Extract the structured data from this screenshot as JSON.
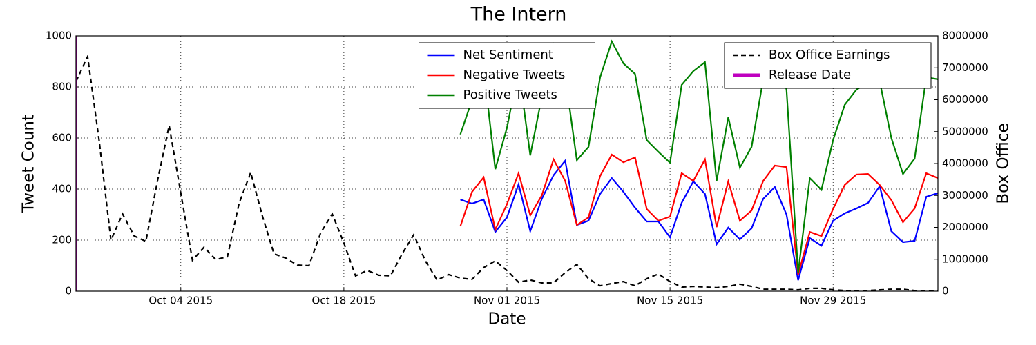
{
  "chart_data": {
    "type": "line",
    "title": "The Intern",
    "xlabel": "Date",
    "ylabel": "Tweet Count",
    "y2label": "Box Office",
    "x": [
      "2015-09-25",
      "2015-09-26",
      "2015-09-27",
      "2015-09-28",
      "2015-09-29",
      "2015-09-30",
      "2015-10-01",
      "2015-10-02",
      "2015-10-03",
      "2015-10-04",
      "2015-10-05",
      "2015-10-06",
      "2015-10-07",
      "2015-10-08",
      "2015-10-09",
      "2015-10-10",
      "2015-10-11",
      "2015-10-12",
      "2015-10-13",
      "2015-10-14",
      "2015-10-15",
      "2015-10-16",
      "2015-10-17",
      "2015-10-18",
      "2015-10-19",
      "2015-10-20",
      "2015-10-21",
      "2015-10-22",
      "2015-10-23",
      "2015-10-24",
      "2015-10-25",
      "2015-10-26",
      "2015-10-27",
      "2015-10-28",
      "2015-10-29",
      "2015-10-30",
      "2015-10-31",
      "2015-11-01",
      "2015-11-02",
      "2015-11-03",
      "2015-11-04",
      "2015-11-05",
      "2015-11-06",
      "2015-11-07",
      "2015-11-08",
      "2015-11-09",
      "2015-11-10",
      "2015-11-11",
      "2015-11-12",
      "2015-11-13",
      "2015-11-14",
      "2015-11-15",
      "2015-11-16",
      "2015-11-17",
      "2015-11-18",
      "2015-11-19",
      "2015-11-20",
      "2015-11-21",
      "2015-11-22",
      "2015-11-23",
      "2015-11-24",
      "2015-11-25",
      "2015-11-26",
      "2015-11-27",
      "2015-11-28",
      "2015-11-29",
      "2015-11-30",
      "2015-12-01",
      "2015-12-02",
      "2015-12-03",
      "2015-12-04",
      "2015-12-05",
      "2015-12-06",
      "2015-12-07",
      "2015-12-08"
    ],
    "series": [
      {
        "name": "Net Sentiment",
        "color": "#0000ff",
        "axis": "y",
        "line_style": "solid",
        "values": [
          null,
          null,
          null,
          null,
          null,
          null,
          null,
          null,
          null,
          null,
          null,
          null,
          null,
          null,
          null,
          null,
          null,
          null,
          null,
          null,
          null,
          null,
          null,
          null,
          null,
          null,
          null,
          null,
          null,
          null,
          null,
          null,
          null,
          359,
          343,
          359,
          232,
          289,
          419,
          235,
          362,
          454,
          511,
          259,
          276,
          381,
          443,
          389,
          327,
          273,
          273,
          211,
          346,
          430,
          381,
          184,
          249,
          203,
          246,
          362,
          408,
          300,
          43,
          208,
          178,
          276,
          305,
          324,
          346,
          411,
          235,
          192,
          197,
          370,
          384
        ]
      },
      {
        "name": "Negative Tweets",
        "color": "#ff0000",
        "axis": "y",
        "line_style": "solid",
        "values": [
          null,
          null,
          null,
          null,
          null,
          null,
          null,
          null,
          null,
          null,
          null,
          null,
          null,
          null,
          null,
          null,
          null,
          null,
          null,
          null,
          null,
          null,
          null,
          null,
          null,
          null,
          null,
          null,
          null,
          null,
          null,
          null,
          null,
          254,
          389,
          446,
          241,
          341,
          462,
          297,
          376,
          516,
          432,
          259,
          289,
          451,
          535,
          505,
          524,
          322,
          276,
          292,
          462,
          432,
          516,
          251,
          430,
          276,
          316,
          432,
          492,
          486,
          65,
          232,
          216,
          322,
          416,
          457,
          459,
          416,
          357,
          270,
          324,
          462,
          443
        ]
      },
      {
        "name": "Positive Tweets",
        "color": "#008000",
        "axis": "y",
        "line_style": "solid",
        "values": [
          null,
          null,
          null,
          null,
          null,
          null,
          null,
          null,
          null,
          null,
          null,
          null,
          null,
          null,
          null,
          null,
          null,
          null,
          null,
          null,
          null,
          null,
          null,
          null,
          null,
          null,
          null,
          null,
          null,
          null,
          null,
          null,
          null,
          614,
          749,
          870,
          478,
          640,
          870,
          532,
          762,
          965,
          843,
          513,
          565,
          838,
          978,
          892,
          851,
          592,
          546,
          503,
          808,
          862,
          897,
          432,
          681,
          484,
          565,
          830,
          957,
          789,
          73,
          443,
          397,
          592,
          730,
          789,
          816,
          822,
          600,
          459,
          519,
          838,
          830
        ]
      },
      {
        "name": "Box Office Earnings",
        "color": "#000000",
        "axis": "y2",
        "line_style": "dashed",
        "values": [
          6570000,
          7350000,
          4690000,
          1600000,
          2420000,
          1730000,
          1560000,
          3460000,
          5190000,
          3070000,
          970000,
          1380000,
          990000,
          1080000,
          2750000,
          3720000,
          2360000,
          1170000,
          1040000,
          820000,
          800000,
          1820000,
          2420000,
          1510000,
          480000,
          650000,
          500000,
          480000,
          1170000,
          1770000,
          950000,
          350000,
          520000,
          410000,
          370000,
          740000,
          950000,
          650000,
          280000,
          350000,
          260000,
          260000,
          580000,
          840000,
          390000,
          170000,
          240000,
          300000,
          170000,
          390000,
          540000,
          300000,
          130000,
          150000,
          130000,
          110000,
          150000,
          220000,
          150000,
          60000,
          60000,
          60000,
          40000,
          90000,
          90000,
          40000,
          20000,
          20000,
          20000,
          40000,
          60000,
          60000,
          20000,
          20000,
          20000
        ]
      }
    ],
    "vlines": [
      {
        "name": "Release Date",
        "color": "#bf00bf",
        "x": "2015-09-25"
      }
    ],
    "xlim": [
      "2015-09-25",
      "2015-12-08"
    ],
    "xticks": [
      {
        "value": "2015-10-04",
        "label": "Oct 04 2015"
      },
      {
        "value": "2015-10-18",
        "label": "Oct 18 2015"
      },
      {
        "value": "2015-11-01",
        "label": "Nov 01 2015"
      },
      {
        "value": "2015-11-15",
        "label": "Nov 15 2015"
      },
      {
        "value": "2015-11-29",
        "label": "Nov 29 2015"
      }
    ],
    "ylim": [
      0,
      1000
    ],
    "yticks": [
      0,
      200,
      400,
      600,
      800,
      1000
    ],
    "y2lim": [
      0,
      8000000
    ],
    "y2ticks": [
      0,
      1000000,
      2000000,
      3000000,
      4000000,
      5000000,
      6000000,
      7000000,
      8000000
    ],
    "grid": true,
    "legend_loc": "upper center",
    "legend2_loc": "upper right"
  }
}
